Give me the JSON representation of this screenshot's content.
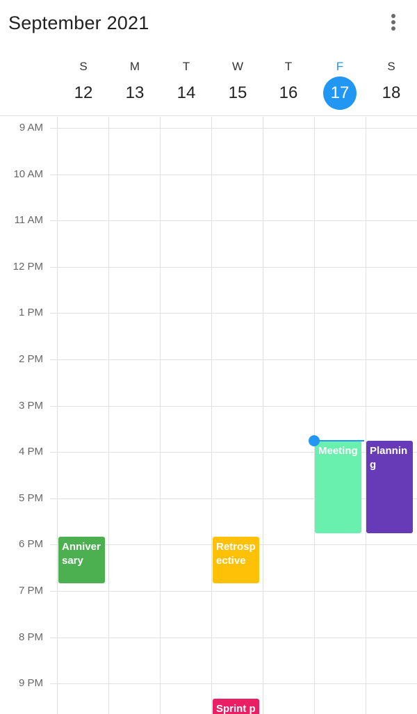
{
  "header": {
    "title": "September 2021",
    "more_icon": "more-vert-icon"
  },
  "week": [
    {
      "letter": "S",
      "date": "12",
      "today": false
    },
    {
      "letter": "M",
      "date": "13",
      "today": false
    },
    {
      "letter": "T",
      "date": "14",
      "today": false
    },
    {
      "letter": "W",
      "date": "15",
      "today": false
    },
    {
      "letter": "T",
      "date": "16",
      "today": false
    },
    {
      "letter": "F",
      "date": "17",
      "today": true
    },
    {
      "letter": "S",
      "date": "18",
      "today": false
    }
  ],
  "hours": [
    "9 AM",
    "10 AM",
    "11 AM",
    "12 PM",
    "1 PM",
    "2 PM",
    "3 PM",
    "4 PM",
    "5 PM",
    "6 PM",
    "7 PM",
    "8 PM",
    "9 PM"
  ],
  "events": [
    {
      "title": "Anniversary",
      "day_index": 0,
      "start": "5:50 PM",
      "end": "6:50 PM",
      "color": "#4caf50"
    },
    {
      "title": "Retrospective",
      "day_index": 3,
      "start": "5:50 PM",
      "end": "6:50 PM",
      "color": "#ffc107"
    },
    {
      "title": "Meeting",
      "day_index": 5,
      "start": "3:45 PM",
      "end": "5:45 PM",
      "color": "#69f0ae"
    },
    {
      "title": "Planning",
      "day_index": 6,
      "start": "3:45 PM",
      "end": "5:45 PM",
      "color": "#673ab7"
    },
    {
      "title": "Sprint planning",
      "day_index": 3,
      "start": "9:20 PM",
      "end": "10:20 PM",
      "color": "#e91e63"
    }
  ],
  "current_time": {
    "day_index": 5,
    "time": "3:45 PM"
  },
  "colors": {
    "accent": "#2196f3",
    "gridline": "#e0e0e0"
  }
}
